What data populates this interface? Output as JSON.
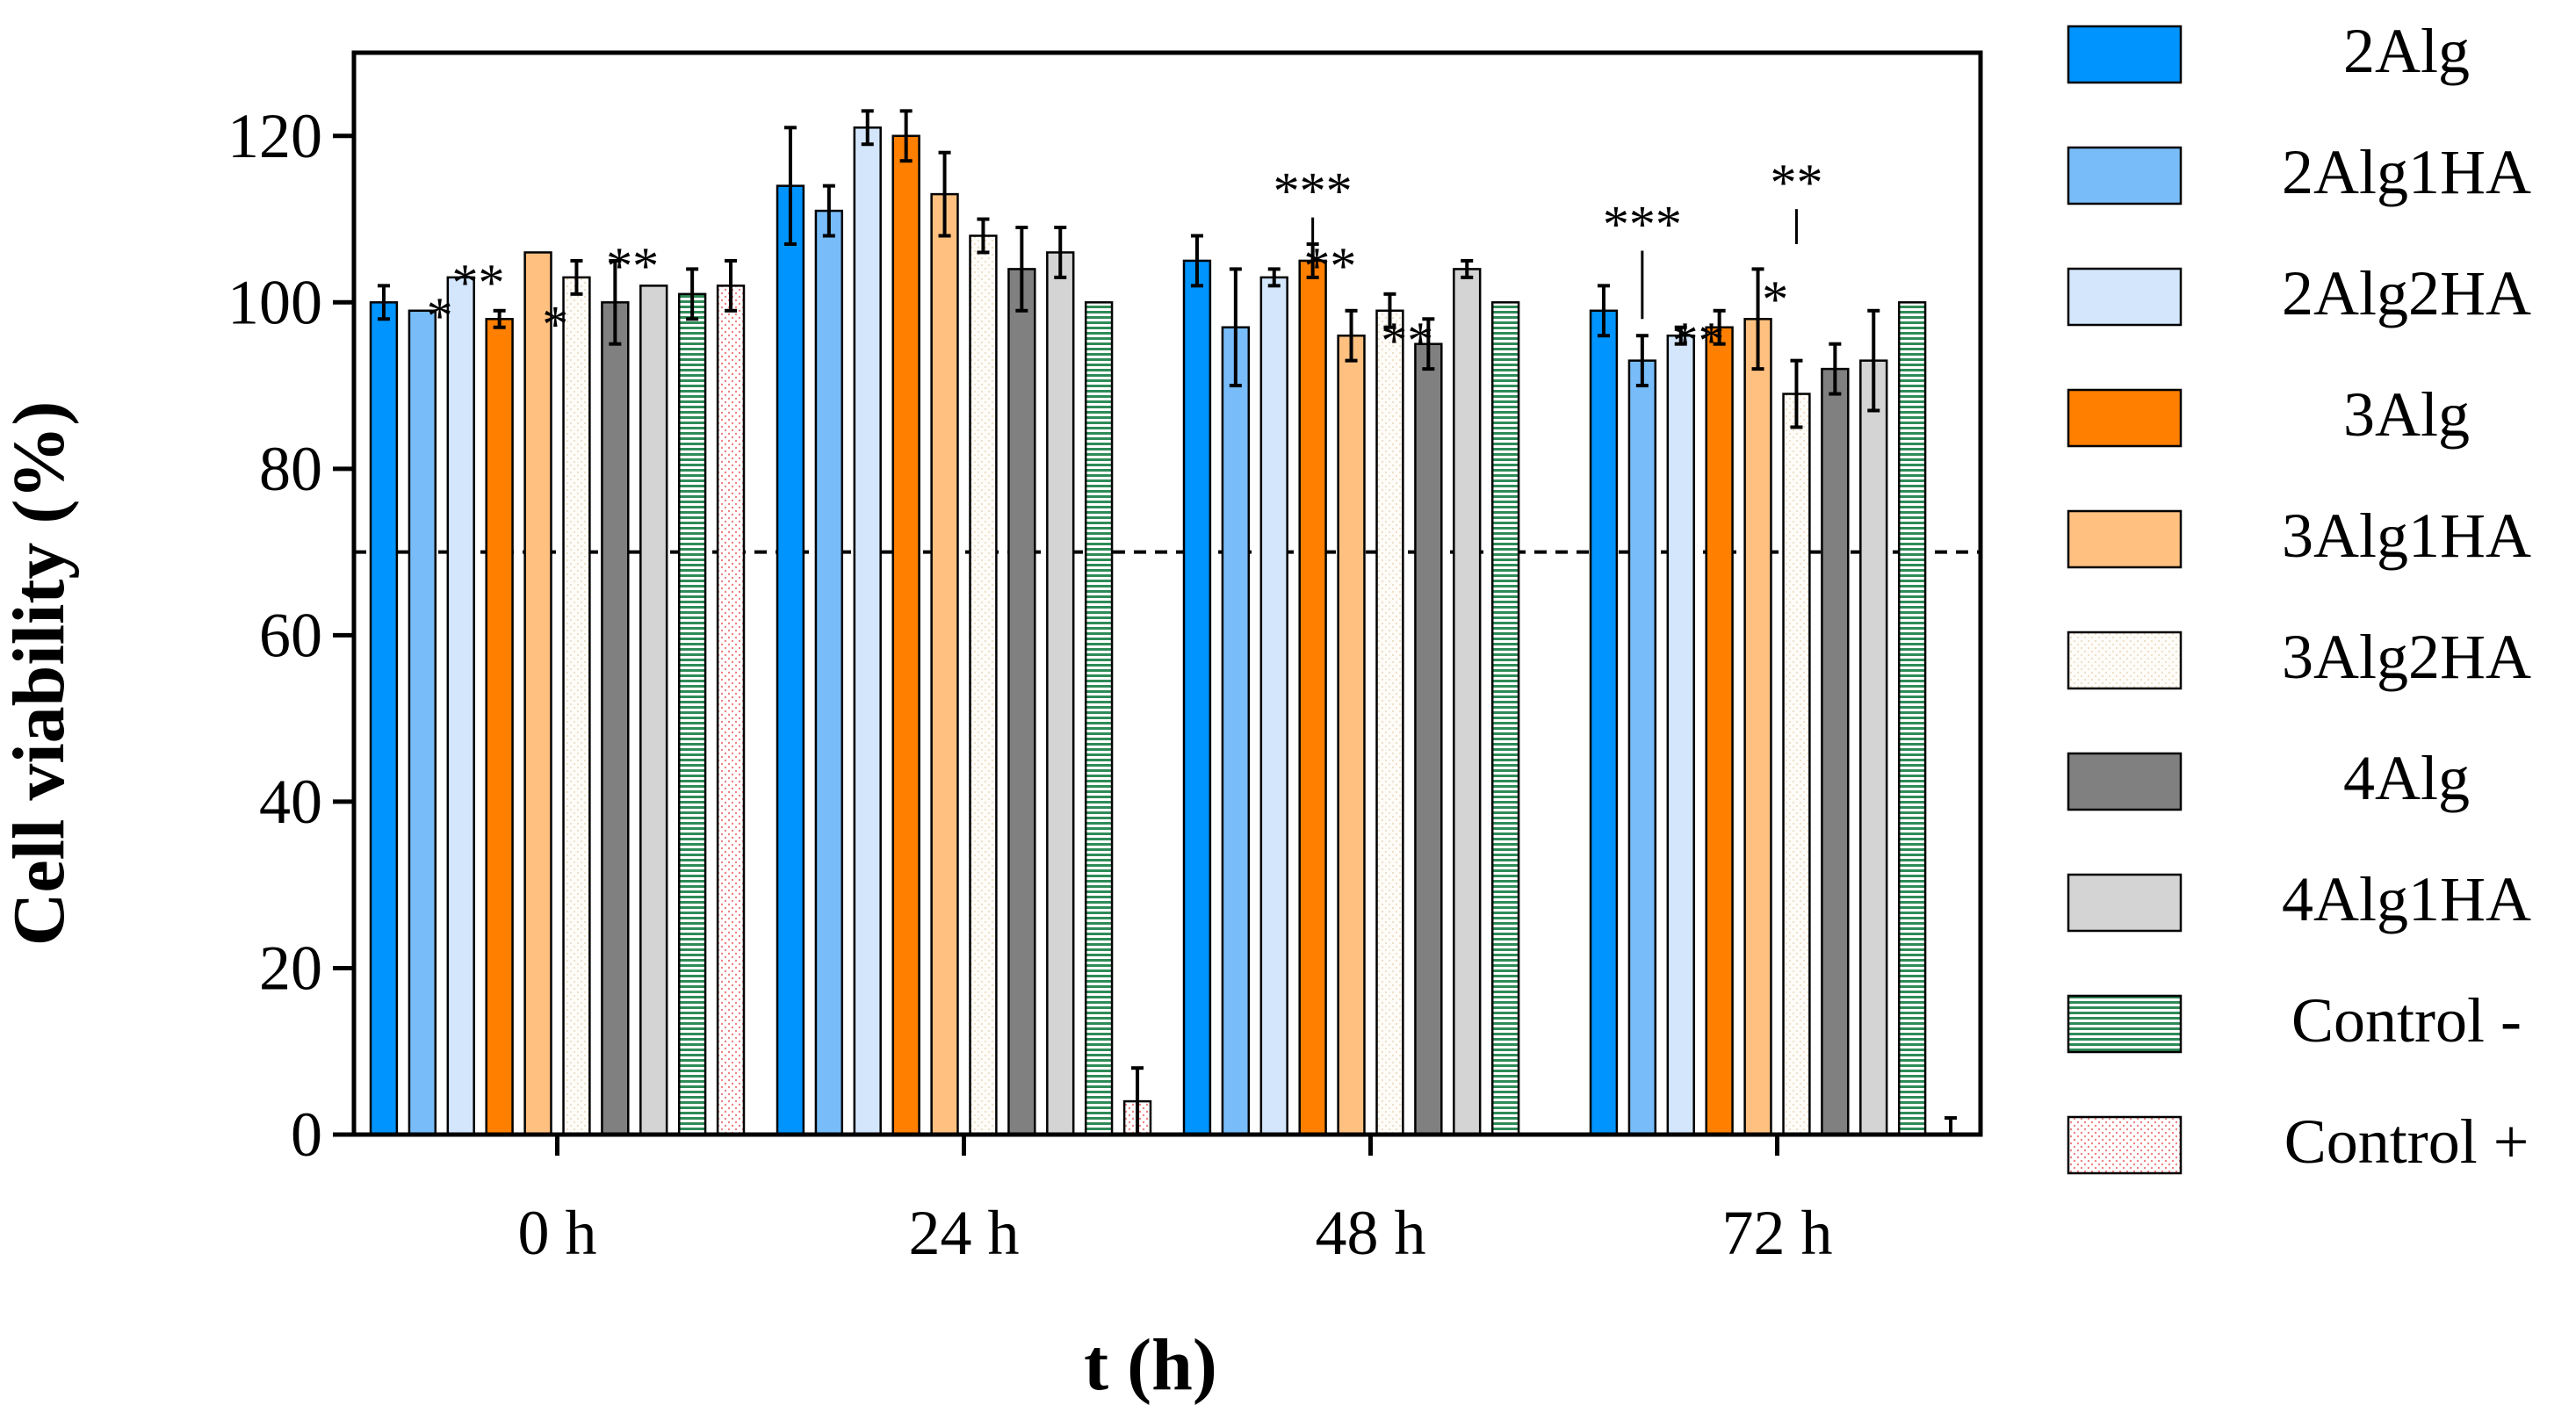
{
  "chart_data": {
    "type": "bar",
    "title": "",
    "xlabel": "t (h)",
    "ylabel": "Cell viability (%)",
    "ylim": [
      0,
      130
    ],
    "yticks": [
      0,
      20,
      40,
      60,
      80,
      100,
      120
    ],
    "categories": [
      "0 h",
      "24 h",
      "48 h",
      "72 h"
    ],
    "reference_line": 70,
    "legend_position": "right",
    "series": [
      {
        "name": "2Alg",
        "color": "#0094ff",
        "pattern": "solid",
        "values": [
          100,
          114,
          105,
          99
        ],
        "errors": [
          2,
          7,
          3,
          3
        ]
      },
      {
        "name": "2Alg1HA",
        "color": "#78bdfa",
        "pattern": "solid",
        "values": [
          99,
          111,
          97,
          93
        ],
        "errors": [
          0,
          3,
          7,
          3
        ]
      },
      {
        "name": "2Alg2HA",
        "color": "#d3e6fb",
        "pattern": "solid",
        "values": [
          103,
          121,
          103,
          96
        ],
        "errors": [
          0,
          2,
          1,
          1
        ]
      },
      {
        "name": "3Alg",
        "color": "#ff7f00",
        "pattern": "solid",
        "values": [
          98,
          120,
          105,
          97
        ],
        "errors": [
          1,
          3,
          2,
          2
        ]
      },
      {
        "name": "3Alg1HA",
        "color": "#ffc080",
        "pattern": "solid",
        "values": [
          106,
          113,
          96,
          98
        ],
        "errors": [
          0,
          5,
          3,
          6
        ]
      },
      {
        "name": "3Alg2HA",
        "color": "#fdf8f0",
        "pattern": "dots",
        "values": [
          103,
          108,
          99,
          89
        ],
        "errors": [
          2,
          2,
          2,
          4
        ]
      },
      {
        "name": "4Alg",
        "color": "#808080",
        "pattern": "solid",
        "values": [
          100,
          104,
          95,
          92
        ],
        "errors": [
          5,
          5,
          3,
          3
        ]
      },
      {
        "name": "4Alg1HA",
        "color": "#d4d4d4",
        "pattern": "solid",
        "values": [
          102,
          106,
          104,
          93
        ],
        "errors": [
          0,
          3,
          1,
          6
        ]
      },
      {
        "name": "Control -",
        "color": "#2e8b57",
        "pattern": "horizontal-stripes",
        "values": [
          101,
          100,
          100,
          100
        ],
        "errors": [
          3,
          0,
          0,
          0
        ]
      },
      {
        "name": "Control +",
        "color": "#f08080",
        "pattern": "pink-dots",
        "values": [
          102,
          4,
          0,
          0
        ],
        "errors": [
          3,
          4,
          0,
          2
        ]
      }
    ],
    "annotations": [
      {
        "text": "*",
        "group": 0,
        "series": 1,
        "value": 99,
        "bracket": false
      },
      {
        "text": "**",
        "group": 0,
        "series": 2,
        "value": 103,
        "bracket": false
      },
      {
        "text": "*",
        "group": 0,
        "series": 4,
        "value": 98,
        "bracket": false
      },
      {
        "text": "**",
        "group": 0,
        "series": 6,
        "value": 105,
        "bracket": false
      },
      {
        "text": "***",
        "group": 2,
        "series": 3,
        "value": 114,
        "bracket": true,
        "bracket_bottom": 107
      },
      {
        "text": "**",
        "group": 2,
        "series": 3,
        "value": 105,
        "bracket": false
      },
      {
        "text": "**",
        "group": 2,
        "series": 5,
        "value": 96,
        "bracket": false
      },
      {
        "text": "***",
        "group": 3,
        "series": 1,
        "value": 110,
        "bracket": true,
        "bracket_bottom": 98
      },
      {
        "text": "**",
        "group": 3,
        "series": 2,
        "value": 96,
        "bracket": false
      },
      {
        "text": "*",
        "group": 3,
        "series": 4,
        "value": 101,
        "bracket": false
      },
      {
        "text": "**",
        "group": 3,
        "series": 5,
        "value": 115,
        "bracket": true,
        "bracket_bottom": 107
      }
    ]
  }
}
